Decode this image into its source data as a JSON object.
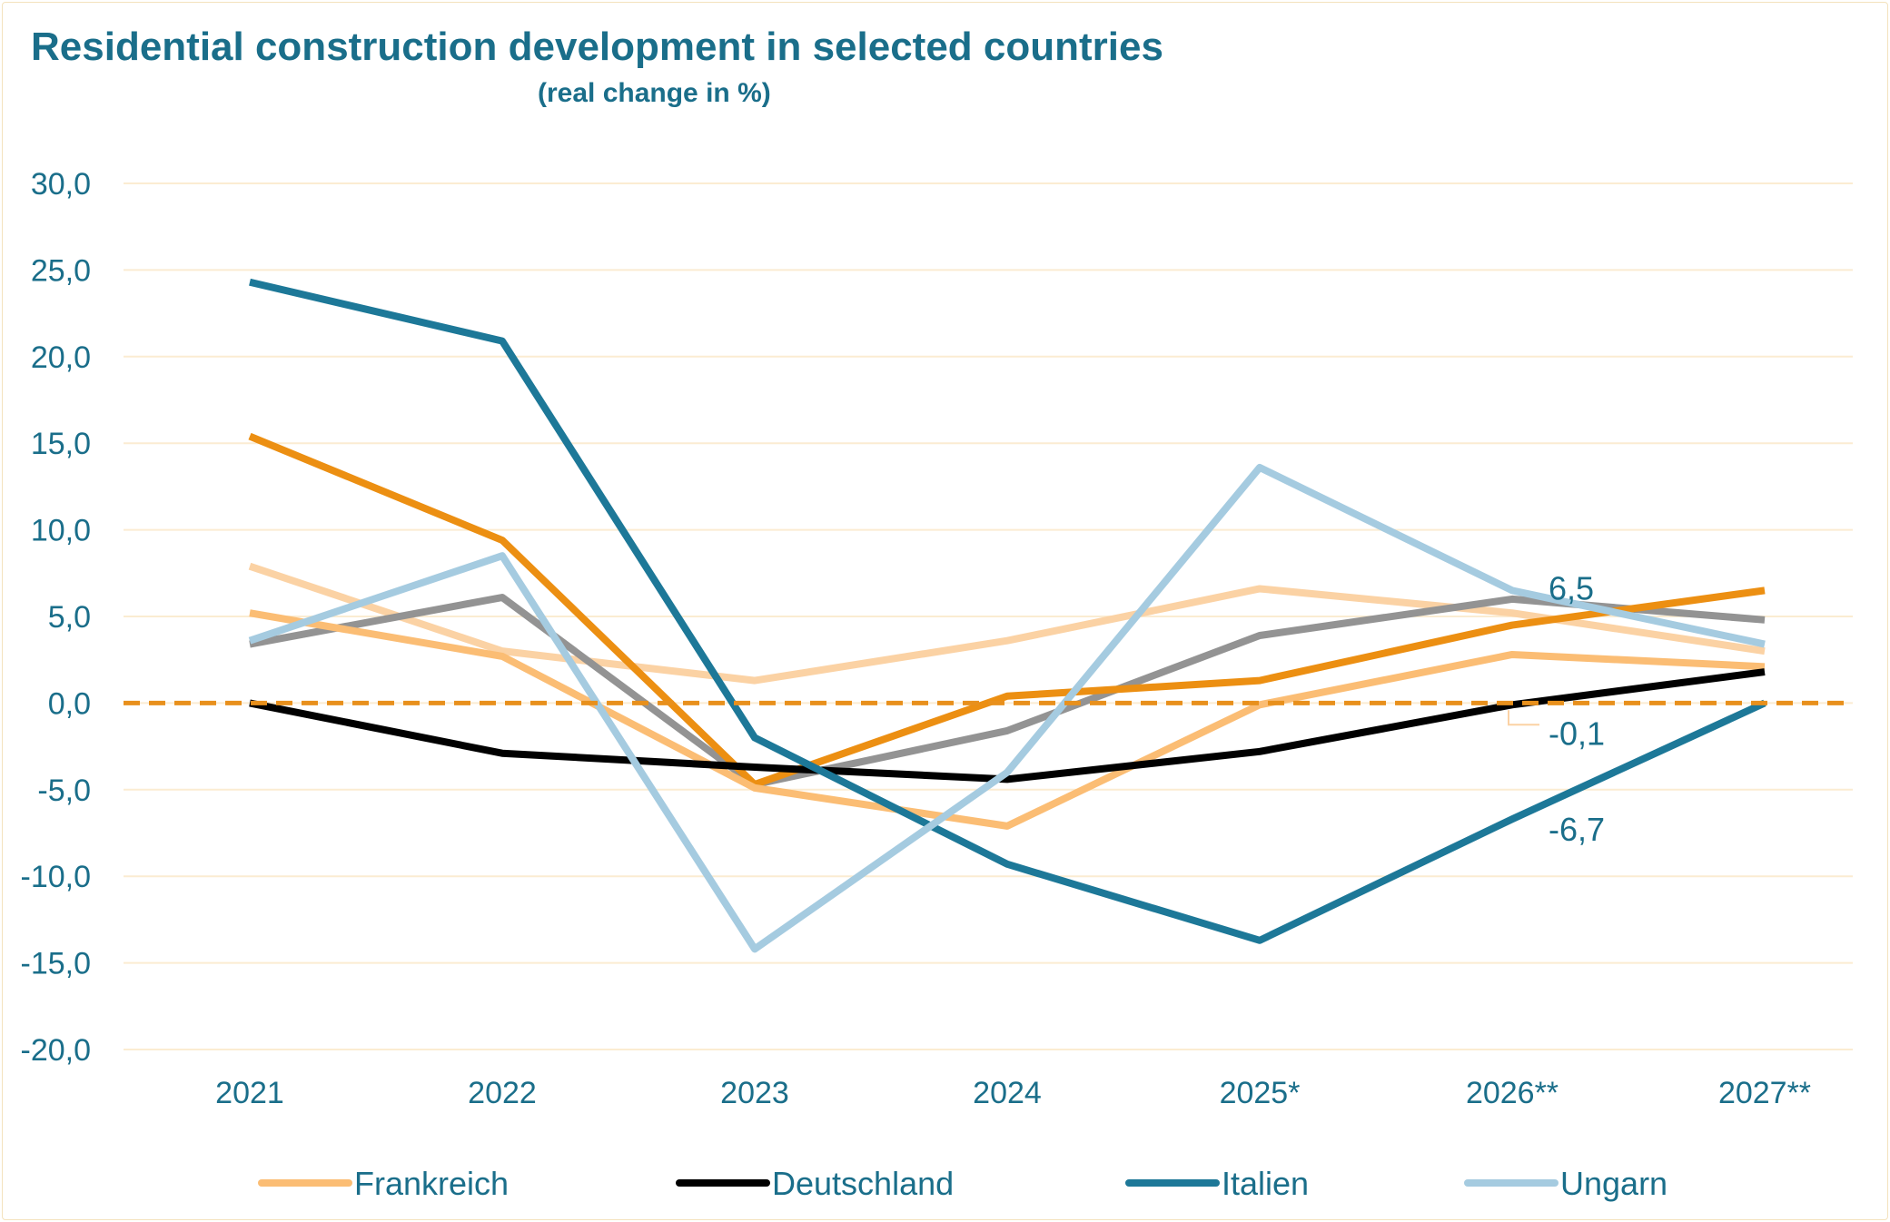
{
  "chart_data": {
    "type": "line",
    "title": "Residential construction development in selected countries",
    "subtitle": "(real change in %)",
    "categories": [
      "2021",
      "2022",
      "2023",
      "2024",
      "2025*",
      "2026**",
      "2027**"
    ],
    "ylim": [
      -20,
      30
    ],
    "yticks": [
      30,
      25,
      20,
      15,
      10,
      5,
      0,
      -5,
      -10,
      -15,
      -20
    ],
    "ytick_labels": [
      "30,0",
      "25,0",
      "20,0",
      "15,0",
      "10,0",
      "5,0",
      "0,0",
      "-5,0",
      "-10,0",
      "-15,0",
      "-20,0"
    ],
    "grid": true,
    "zero_line": {
      "style": "dashed",
      "color": "#e8901c"
    },
    "legend_position": "bottom",
    "series": [
      {
        "name": "",
        "color": "#fbd2a4",
        "values": [
          7.9,
          3.0,
          1.3,
          3.6,
          6.6,
          5.2,
          3.0
        ],
        "in_legend": false
      },
      {
        "name": "",
        "color": "#939393",
        "values": [
          3.4,
          6.1,
          -4.7,
          -1.6,
          3.9,
          6.0,
          4.8
        ],
        "in_legend": false
      },
      {
        "name": "",
        "color": "#ec8f12",
        "values": [
          15.4,
          9.4,
          -4.7,
          0.4,
          1.3,
          4.5,
          6.5
        ],
        "in_legend": false
      },
      {
        "name": "Frankreich",
        "color": "#fbbd74",
        "values": [
          5.2,
          2.7,
          -4.9,
          -7.1,
          -0.1,
          2.8,
          2.1
        ],
        "in_legend": true
      },
      {
        "name": "Deutschland",
        "color": "#000000",
        "values": [
          0.0,
          -2.9,
          -3.7,
          -4.4,
          -2.8,
          -0.1,
          1.8
        ],
        "in_legend": true
      },
      {
        "name": "Italien",
        "color": "#1d7898",
        "values": [
          24.3,
          20.9,
          -2.0,
          -9.3,
          -13.7,
          -6.7,
          0.0
        ],
        "in_legend": true
      },
      {
        "name": "Ungarn",
        "color": "#a5cbe0",
        "values": [
          3.6,
          8.5,
          -14.2,
          -4.0,
          13.6,
          6.5,
          3.4
        ],
        "in_legend": true
      }
    ],
    "annotations": [
      {
        "text": "6,5",
        "series": "Ungarn",
        "category": "2026**"
      },
      {
        "text": "-0,1",
        "series": "Deutschland",
        "category": "2026**"
      },
      {
        "text": "-6,7",
        "series": "Italien",
        "category": "2026**"
      }
    ]
  }
}
